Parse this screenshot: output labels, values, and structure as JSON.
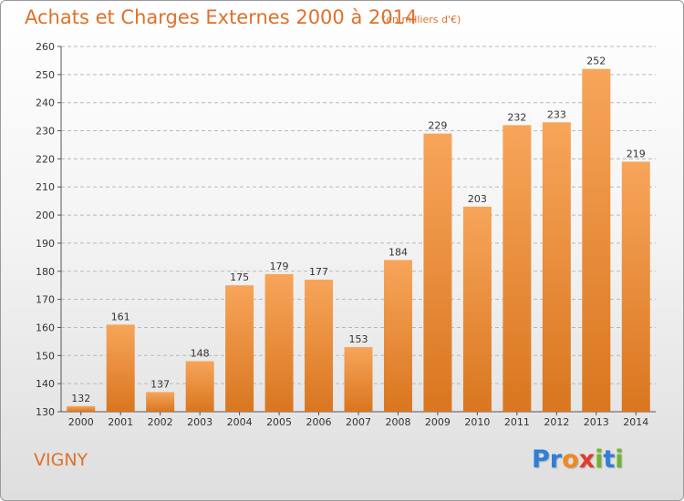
{
  "header": {
    "title": "Achats et Charges Externes 2000 à 2014",
    "subtitle": "(en milliers d'€)"
  },
  "footer": {
    "commune": "VIGNY",
    "logo_letters": [
      {
        "char": "P",
        "color": "#2f7fd8"
      },
      {
        "char": "r",
        "color": "#2f7fd8"
      },
      {
        "char": "o",
        "color": "#f08a1c"
      },
      {
        "char": "x",
        "color": "#e23a2d"
      },
      {
        "char": "i",
        "color": "#6fb52c"
      },
      {
        "char": "t",
        "color": "#2f7fd8"
      },
      {
        "char": "i",
        "color": "#6fb52c"
      }
    ]
  },
  "colors": {
    "accent": "#e0702a",
    "bar_top": "#f7a55a",
    "bar_bottom": "#d9761f"
  },
  "chart_data": {
    "type": "bar",
    "categories": [
      "2000",
      "2001",
      "2002",
      "2003",
      "2004",
      "2005",
      "2006",
      "2007",
      "2008",
      "2009",
      "2010",
      "2011",
      "2012",
      "2013",
      "2014"
    ],
    "values": [
      132,
      161,
      137,
      148,
      175,
      179,
      177,
      153,
      184,
      229,
      203,
      232,
      233,
      252,
      219
    ],
    "ylim": [
      130,
      260
    ],
    "yticks": [
      130,
      140,
      150,
      160,
      170,
      180,
      190,
      200,
      210,
      220,
      230,
      240,
      250,
      260
    ],
    "grid": true,
    "legend": "none"
  }
}
